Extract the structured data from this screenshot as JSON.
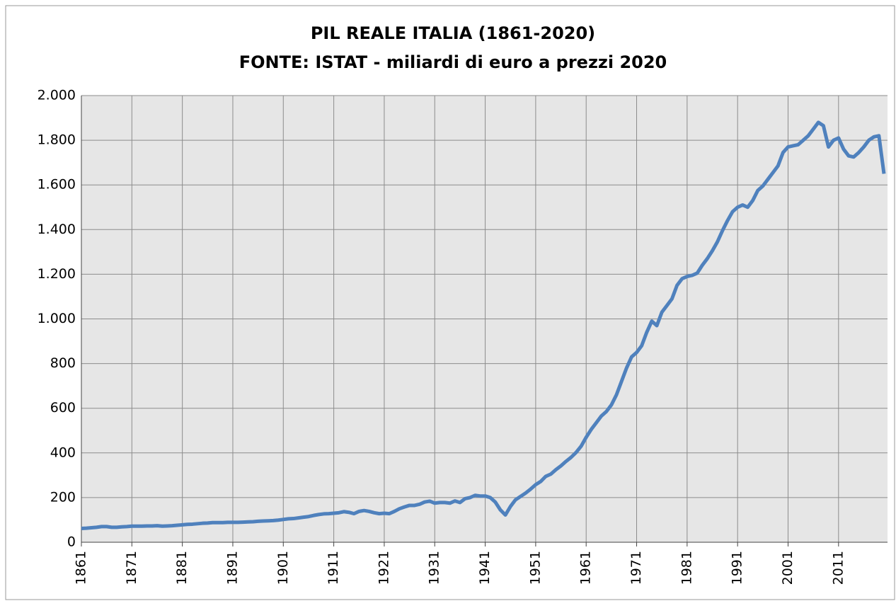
{
  "chart_data": {
    "type": "line",
    "title": "PIL REALE ITALIA (1861-2020)",
    "subtitle": "FONTE: ISTAT - miliardi di euro a prezzi 2020",
    "x": [
      1861,
      1862,
      1863,
      1864,
      1865,
      1866,
      1867,
      1868,
      1869,
      1870,
      1871,
      1872,
      1873,
      1874,
      1875,
      1876,
      1877,
      1878,
      1879,
      1880,
      1881,
      1882,
      1883,
      1884,
      1885,
      1886,
      1887,
      1888,
      1889,
      1890,
      1891,
      1892,
      1893,
      1894,
      1895,
      1896,
      1897,
      1898,
      1899,
      1900,
      1901,
      1902,
      1903,
      1904,
      1905,
      1906,
      1907,
      1908,
      1909,
      1910,
      1911,
      1912,
      1913,
      1914,
      1915,
      1916,
      1917,
      1918,
      1919,
      1920,
      1921,
      1922,
      1923,
      1924,
      1925,
      1926,
      1927,
      1928,
      1929,
      1930,
      1931,
      1932,
      1933,
      1934,
      1935,
      1936,
      1937,
      1938,
      1939,
      1940,
      1941,
      1942,
      1943,
      1944,
      1945,
      1946,
      1947,
      1948,
      1949,
      1950,
      1951,
      1952,
      1953,
      1954,
      1955,
      1956,
      1957,
      1958,
      1959,
      1960,
      1961,
      1962,
      1963,
      1964,
      1965,
      1966,
      1967,
      1968,
      1969,
      1970,
      1971,
      1972,
      1973,
      1974,
      1975,
      1976,
      1977,
      1978,
      1979,
      1980,
      1981,
      1982,
      1983,
      1984,
      1985,
      1986,
      1987,
      1988,
      1989,
      1990,
      1991,
      1992,
      1993,
      1994,
      1995,
      1996,
      1997,
      1998,
      1999,
      2000,
      2001,
      2002,
      2003,
      2004,
      2005,
      2006,
      2007,
      2008,
      2009,
      2010,
      2011,
      2012,
      2013,
      2014,
      2015,
      2016,
      2017,
      2018,
      2019,
      2020
    ],
    "series": [
      {
        "color": "#4f81bd",
        "values": [
          62,
          63,
          65,
          67,
          70,
          70,
          67,
          67,
          69,
          70,
          72,
          72,
          72,
          73,
          73,
          74,
          72,
          73,
          74,
          76,
          78,
          80,
          81,
          83,
          85,
          86,
          88,
          88,
          88,
          89,
          89,
          89,
          90,
          91,
          92,
          94,
          95,
          96,
          97,
          99,
          102,
          105,
          106,
          109,
          112,
          115,
          120,
          124,
          127,
          128,
          130,
          132,
          137,
          134,
          128,
          138,
          142,
          138,
          132,
          128,
          130,
          128,
          138,
          150,
          158,
          165,
          165,
          170,
          180,
          184,
          175,
          178,
          178,
          175,
          185,
          178,
          195,
          200,
          210,
          207,
          207,
          200,
          180,
          145,
          122,
          160,
          190,
          205,
          220,
          238,
          258,
          272,
          295,
          305,
          325,
          342,
          362,
          380,
          402,
          430,
          470,
          505,
          535,
          565,
          585,
          615,
          660,
          720,
          780,
          830,
          850,
          880,
          940,
          990,
          970,
          1030,
          1060,
          1090,
          1150,
          1180,
          1190,
          1195,
          1205,
          1240,
          1270,
          1305,
          1345,
          1395,
          1440,
          1480,
          1500,
          1510,
          1500,
          1530,
          1575,
          1595,
          1625,
          1655,
          1685,
          1745,
          1770,
          1775,
          1780,
          1800,
          1820,
          1850,
          1880,
          1865,
          1770,
          1800,
          1810,
          1760,
          1730,
          1725,
          1745,
          1770,
          1800,
          1815,
          1820,
          1650
        ]
      }
    ],
    "xlim": [
      1861,
      2020
    ],
    "xticks": [
      1861,
      1871,
      1881,
      1891,
      1901,
      1911,
      1921,
      1931,
      1941,
      1951,
      1961,
      1971,
      1981,
      1991,
      2001,
      2011
    ],
    "ylim": [
      0,
      2000
    ],
    "yticks": [
      0,
      200,
      400,
      600,
      800,
      {
        "value": 1000,
        "label": "1.000"
      },
      {
        "value": 1200,
        "label": "1.200"
      },
      {
        "value": 1400,
        "label": "1.400"
      },
      {
        "value": 1600,
        "label": "1.600"
      },
      {
        "value": 1800,
        "label": "1.800"
      },
      {
        "value": 2000,
        "label": "2.000"
      }
    ],
    "grid": true
  }
}
